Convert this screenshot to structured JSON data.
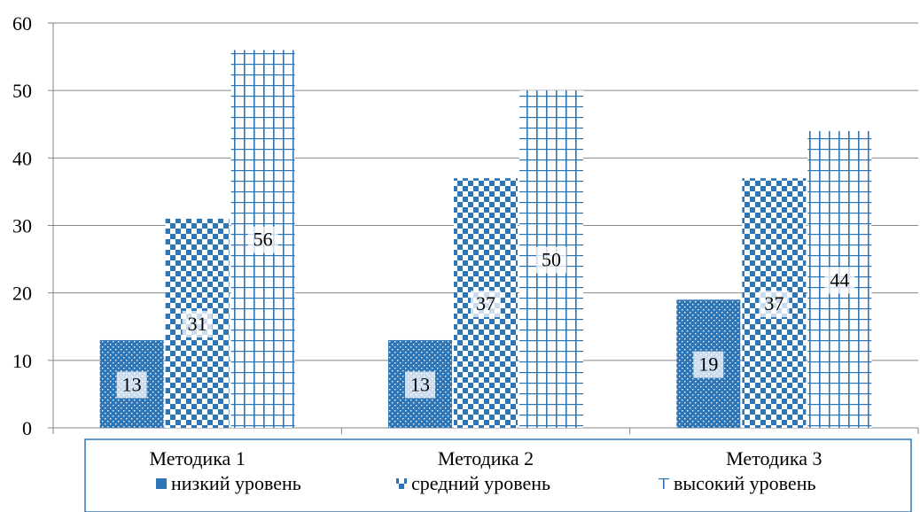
{
  "chart_data": {
    "type": "bar",
    "categories": [
      "Методика 1",
      "Методика 2",
      "Методика 3"
    ],
    "series": [
      {
        "name": "низкий уровень",
        "values": [
          13,
          13,
          19
        ],
        "pattern": "dots"
      },
      {
        "name": "средний уровень",
        "values": [
          31,
          37,
          37
        ],
        "pattern": "checker"
      },
      {
        "name": "высокий уровень",
        "values": [
          56,
          50,
          44
        ],
        "pattern": "grid"
      }
    ],
    "ylim": [
      0,
      60
    ],
    "yticks": [
      0,
      10,
      20,
      30,
      40,
      50,
      60
    ],
    "grid": true,
    "legend_position": "bottom",
    "colors": {
      "bar": "#2E75B6",
      "grid": "#868686",
      "legend_border": "#2E75B6"
    }
  }
}
